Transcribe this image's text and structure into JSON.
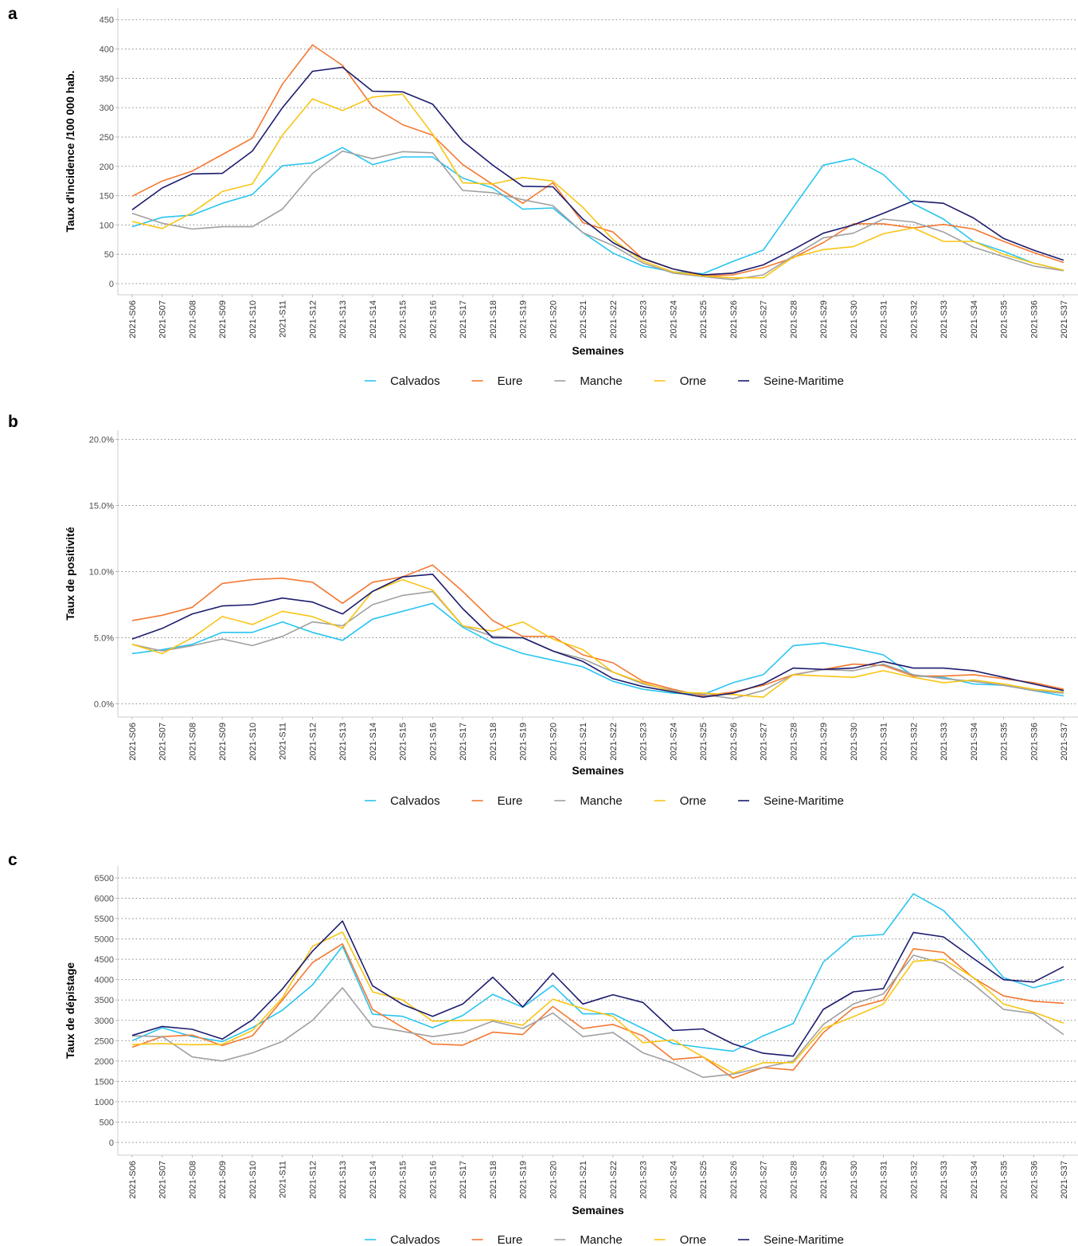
{
  "chart_data": [
    {
      "type": "line",
      "label": "a",
      "y_label": "Taux d'incidence /100 000 hab.",
      "x_label": "Semaines",
      "categories": [
        "2021-S06",
        "2021-S07",
        "2021-S08",
        "2021-S09",
        "2021-S10",
        "2021-S11",
        "2021-S12",
        "2021-S13",
        "2021-S14",
        "2021-S15",
        "2021-S16",
        "2021-S17",
        "2021-S18",
        "2021-S19",
        "2021-S20",
        "2021-S21",
        "2021-S22",
        "2021-S23",
        "2021-S24",
        "2021-S25",
        "2021-S26",
        "2021-S27",
        "2021-S28",
        "2021-S29",
        "2021-S30",
        "2021-S31",
        "2021-S32",
        "2021-S33",
        "2021-S34",
        "2021-S35",
        "2021-S36",
        "2021-S37"
      ],
      "series": [
        {
          "name": "Calvados",
          "color": "#29c5f0",
          "values": [
            97,
            113,
            117,
            137,
            152,
            201,
            206,
            232,
            203,
            216,
            216,
            180,
            163,
            127,
            129,
            87,
            52,
            30,
            20,
            17,
            38,
            57,
            130,
            202,
            213,
            186,
            136,
            110,
            72,
            55,
            35,
            23
          ]
        },
        {
          "name": "Eure",
          "color": "#f47830",
          "values": [
            149,
            175,
            192,
            220,
            248,
            340,
            407,
            372,
            302,
            271,
            253,
            203,
            169,
            137,
            172,
            104,
            88,
            42,
            25,
            13,
            15,
            27,
            44,
            70,
            102,
            102,
            95,
            101,
            93,
            72,
            53,
            36
          ]
        },
        {
          "name": "Manche",
          "color": "#a0a0a0",
          "values": [
            120,
            103,
            93,
            97,
            97,
            127,
            188,
            226,
            213,
            225,
            223,
            159,
            155,
            143,
            133,
            87,
            65,
            35,
            18,
            12,
            7,
            15,
            47,
            78,
            86,
            110,
            105,
            88,
            62,
            46,
            30,
            22
          ]
        },
        {
          "name": "Orne",
          "color": "#f8c515",
          "values": [
            106,
            94,
            121,
            157,
            170,
            253,
            315,
            295,
            318,
            323,
            255,
            172,
            170,
            181,
            175,
            130,
            75,
            38,
            20,
            13,
            10,
            10,
            45,
            58,
            63,
            85,
            95,
            72,
            72,
            50,
            35,
            23
          ]
        },
        {
          "name": "Seine-Maritime",
          "color": "#1c1c6e",
          "values": [
            126,
            163,
            187,
            188,
            226,
            300,
            362,
            369,
            328,
            327,
            306,
            243,
            202,
            166,
            165,
            110,
            70,
            43,
            25,
            15,
            18,
            32,
            58,
            86,
            100,
            120,
            141,
            137,
            112,
            77,
            57,
            40
          ]
        }
      ],
      "ylim": [
        -19,
        470
      ],
      "yticks": [
        0,
        50,
        100,
        150,
        200,
        250,
        300,
        350,
        400,
        450
      ],
      "grid": true,
      "legend": "bottom"
    },
    {
      "type": "line",
      "label": "b",
      "y_label": "Taux de positivité",
      "x_label": "Semaines",
      "categories": [
        "2021-S06",
        "2021-S07",
        "2021-S08",
        "2021-S09",
        "2021-S10",
        "2021-S11",
        "2021-S12",
        "2021-S13",
        "2021-S14",
        "2021-S15",
        "2021-S16",
        "2021-S17",
        "2021-S18",
        "2021-S19",
        "2021-S20",
        "2021-S21",
        "2021-S22",
        "2021-S23",
        "2021-S24",
        "2021-S25",
        "2021-S26",
        "2021-S27",
        "2021-S28",
        "2021-S29",
        "2021-S30",
        "2021-S31",
        "2021-S32",
        "2021-S33",
        "2021-S34",
        "2021-S35",
        "2021-S36",
        "2021-S37"
      ],
      "series": [
        {
          "name": "Calvados",
          "color": "#29c5f0",
          "values": [
            3.8,
            4.1,
            4.5,
            5.4,
            5.4,
            6.2,
            5.4,
            4.8,
            6.4,
            7.0,
            7.6,
            5.8,
            4.6,
            3.8,
            3.3,
            2.8,
            1.7,
            1.1,
            0.8,
            0.7,
            1.6,
            2.2,
            4.4,
            4.6,
            4.2,
            3.7,
            2.1,
            2.0,
            1.5,
            1.4,
            1.0,
            0.6
          ]
        },
        {
          "name": "Eure",
          "color": "#f47830",
          "values": [
            6.3,
            6.7,
            7.3,
            9.1,
            9.4,
            9.5,
            9.2,
            7.6,
            9.2,
            9.6,
            10.5,
            8.5,
            6.3,
            5.1,
            5.1,
            3.7,
            3.1,
            1.7,
            1.1,
            0.6,
            0.9,
            1.4,
            2.2,
            2.6,
            3.0,
            2.9,
            2.1,
            2.1,
            2.2,
            1.9,
            1.6,
            1.1
          ]
        },
        {
          "name": "Manche",
          "color": "#a0a0a0",
          "values": [
            4.5,
            4.0,
            4.4,
            4.9,
            4.4,
            5.1,
            6.2,
            5.9,
            7.5,
            8.2,
            8.5,
            5.9,
            5.1,
            5.0,
            4.0,
            3.4,
            2.4,
            1.5,
            1.0,
            0.7,
            0.4,
            1.0,
            2.2,
            2.6,
            2.5,
            3.0,
            2.2,
            1.9,
            1.7,
            1.4,
            1.0,
            0.8
          ]
        },
        {
          "name": "Orne",
          "color": "#f8c515",
          "values": [
            4.5,
            3.8,
            5.0,
            6.6,
            6.0,
            7.0,
            6.6,
            5.7,
            8.5,
            9.4,
            8.6,
            5.9,
            5.5,
            6.2,
            4.9,
            4.1,
            2.4,
            1.6,
            0.9,
            0.8,
            0.7,
            0.5,
            2.2,
            2.1,
            2.0,
            2.5,
            2.0,
            1.6,
            1.8,
            1.5,
            1.1,
            0.9
          ]
        },
        {
          "name": "Seine-Maritime",
          "color": "#1c1c6e",
          "values": [
            4.9,
            5.7,
            6.8,
            7.4,
            7.5,
            8.0,
            7.7,
            6.8,
            8.5,
            9.6,
            9.8,
            7.2,
            5.0,
            5.0,
            4.0,
            3.2,
            1.9,
            1.3,
            0.9,
            0.5,
            0.8,
            1.5,
            2.7,
            2.6,
            2.7,
            3.2,
            2.7,
            2.7,
            2.5,
            2.0,
            1.5,
            1.0
          ]
        }
      ],
      "ylim": [
        -1,
        20.7
      ],
      "yticks": [
        {
          "value": 0,
          "label": "0.0%"
        },
        {
          "value": 5,
          "label": "5.0%"
        },
        {
          "value": 10,
          "label": "10.0%"
        },
        {
          "value": 15,
          "label": "15.0%"
        },
        {
          "value": 20,
          "label": "20.0%"
        }
      ],
      "grid": true,
      "legend": "bottom"
    },
    {
      "type": "line",
      "label": "c",
      "y_label": "Taux de dépistage",
      "x_label": "Semaines",
      "categories": [
        "2021-S06",
        "2021-S07",
        "2021-S08",
        "2021-S09",
        "2021-S10",
        "2021-S11",
        "2021-S12",
        "2021-S13",
        "2021-S14",
        "2021-S15",
        "2021-S16",
        "2021-S17",
        "2021-S18",
        "2021-S19",
        "2021-S20",
        "2021-S21",
        "2021-S22",
        "2021-S23",
        "2021-S24",
        "2021-S25",
        "2021-S26",
        "2021-S27",
        "2021-S28",
        "2021-S29",
        "2021-S30",
        "2021-S31",
        "2021-S32",
        "2021-S33",
        "2021-S34",
        "2021-S35",
        "2021-S36",
        "2021-S37"
      ],
      "series": [
        {
          "name": "Calvados",
          "color": "#29c5f0",
          "values": [
            2500,
            2820,
            2600,
            2480,
            2820,
            3250,
            3870,
            4820,
            3150,
            3100,
            2820,
            3120,
            3640,
            3320,
            3860,
            3160,
            3160,
            2800,
            2430,
            2330,
            2240,
            2620,
            2920,
            4430,
            5060,
            5110,
            6110,
            5700,
            4920,
            4050,
            3800,
            4000
          ]
        },
        {
          "name": "Eure",
          "color": "#f47830",
          "values": [
            2340,
            2600,
            2640,
            2380,
            2620,
            3500,
            4420,
            4880,
            3270,
            2830,
            2420,
            2390,
            2710,
            2650,
            3340,
            2800,
            2900,
            2620,
            2040,
            2100,
            1580,
            1840,
            1780,
            2700,
            3300,
            3500,
            4760,
            4670,
            4040,
            3600,
            3470,
            3420
          ]
        },
        {
          "name": "Manche",
          "color": "#a0a0a0",
          "values": [
            2620,
            2600,
            2100,
            2000,
            2200,
            2480,
            3000,
            3800,
            2850,
            2730,
            2600,
            2700,
            2980,
            2800,
            3180,
            2600,
            2700,
            2200,
            1950,
            1600,
            1680,
            1840,
            2000,
            2900,
            3400,
            3650,
            4600,
            4400,
            3880,
            3270,
            3170,
            2650
          ]
        },
        {
          "name": "Orne",
          "color": "#f8c515",
          "values": [
            2410,
            2430,
            2400,
            2410,
            2750,
            3550,
            4820,
            5170,
            3700,
            3500,
            2980,
            3000,
            3010,
            2880,
            3520,
            3290,
            3100,
            2450,
            2520,
            2100,
            1700,
            1960,
            1960,
            2800,
            3090,
            3400,
            4450,
            4500,
            4050,
            3400,
            3200,
            2930
          ]
        },
        {
          "name": "Seine-Maritime",
          "color": "#1c1c6e",
          "values": [
            2630,
            2850,
            2780,
            2540,
            3010,
            3770,
            4700,
            5440,
            3850,
            3390,
            3100,
            3400,
            4060,
            3330,
            4160,
            3400,
            3630,
            3440,
            2750,
            2790,
            2420,
            2190,
            2120,
            3270,
            3700,
            3780,
            5160,
            5050,
            4520,
            4000,
            3940,
            4320
          ]
        }
      ],
      "ylim": [
        -313,
        6793
      ],
      "yticks": [
        0,
        500,
        1000,
        1500,
        2000,
        2500,
        3000,
        3500,
        4000,
        4500,
        5000,
        5500,
        6000,
        6500
      ],
      "grid": true,
      "legend": "bottom"
    }
  ]
}
